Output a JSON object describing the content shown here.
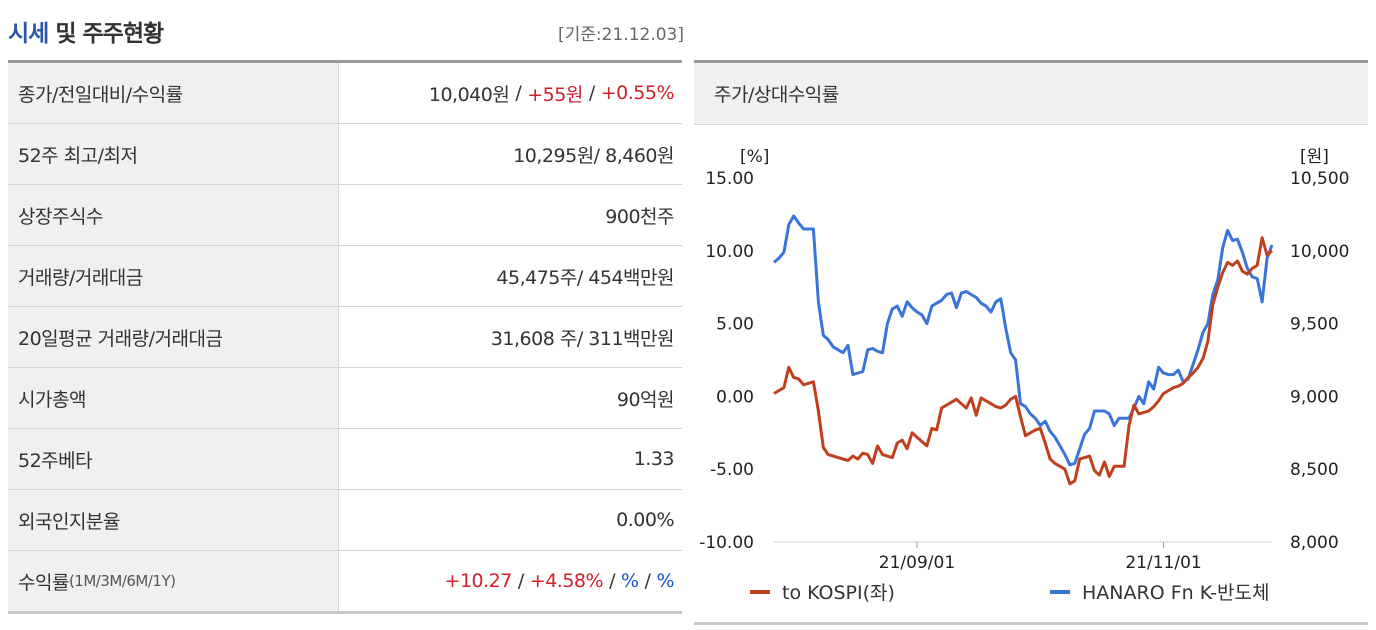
{
  "header": {
    "title_highlight": "시세",
    "title_rest": " 및 주주현황",
    "date": "[기준:21.12.03]"
  },
  "table": {
    "close": {
      "label": "종가/전일대비/수익률",
      "price": "10,040원",
      "change": "+55원",
      "rate": "+0.55%"
    },
    "range52": {
      "label": "52주 최고/최저",
      "value": "10,295원/ 8,460원"
    },
    "shares": {
      "label": "상장주식수",
      "value": "900천주"
    },
    "volume": {
      "label": "거래량/거래대금",
      "value": "45,475주/ 454백만원"
    },
    "avg20": {
      "label": "20일평균 거래량/거래대금",
      "value": "31,608 주/ 311백만원"
    },
    "mcap": {
      "label": "시가총액",
      "value": "90억원"
    },
    "beta": {
      "label": "52주베타",
      "value": "1.33"
    },
    "foreign": {
      "label": "외국인지분율",
      "value": "0.00%"
    },
    "returns": {
      "label_main": "수익률",
      "label_sub": "(1M/3M/6M/1Y)",
      "r1m": "+10.27",
      "r3m": "+4.58%",
      "r6m": "%",
      "r1y": "%",
      "sep": "/"
    }
  },
  "chart_header": "주가/상대수익률",
  "chart_data": {
    "type": "line",
    "left_unit": "[%]",
    "right_unit": "[원]",
    "left_ticks": [
      "15.00",
      "10.00",
      "5.00",
      "0.00",
      "-5.00",
      "-10.00"
    ],
    "right_ticks": [
      "10,500",
      "10,000",
      "9,500",
      "9,000",
      "8,500",
      "8,000"
    ],
    "left_ylim": [
      -10,
      15
    ],
    "right_ylim": [
      8000,
      10500
    ],
    "x_ticks": [
      "21/09/01",
      "21/11/01"
    ],
    "x_tick_index": [
      29,
      79
    ],
    "colors": {
      "kospi": "#c0401e",
      "etf": "#3a74d8"
    },
    "series": [
      {
        "name": "to KOSPI(좌)",
        "axis": "left",
        "values": [
          0.2,
          0.4,
          0.6,
          2.0,
          1.3,
          1.2,
          0.8,
          0.9,
          1.0,
          -1.0,
          -3.5,
          -4.0,
          -4.1,
          -4.2,
          -4.3,
          -4.4,
          -4.1,
          -4.3,
          -3.9,
          -4.0,
          -4.6,
          -3.4,
          -4.0,
          -4.1,
          -4.2,
          -3.2,
          -3.0,
          -3.6,
          -2.5,
          -2.8,
          -3.1,
          -3.4,
          -2.2,
          -2.3,
          -0.8,
          -0.6,
          -0.4,
          -0.2,
          -0.5,
          -0.8,
          -0.1,
          -1.3,
          -0.1,
          -0.3,
          -0.5,
          -0.7,
          -0.8,
          -0.6,
          -0.2,
          0.0,
          -1.4,
          -2.7,
          -2.5,
          -2.3,
          -2.2,
          -3.2,
          -4.3,
          -4.6,
          -4.8,
          -5.0,
          -6.0,
          -5.8,
          -4.3,
          -4.2,
          -4.1,
          -5.1,
          -5.4,
          -4.5,
          -5.5,
          -4.8,
          -4.8,
          -4.8,
          -2.0,
          -0.6,
          -1.2,
          -1.1,
          -1.0,
          -0.7,
          -0.3,
          0.2,
          0.4,
          0.6,
          0.7,
          0.9,
          1.3,
          1.6,
          2.0,
          2.6,
          3.8,
          6.3,
          7.5,
          8.5,
          9.2,
          9.0,
          9.3,
          8.6,
          8.4,
          8.8,
          9.0,
          10.9,
          9.7,
          10.0
        ]
      },
      {
        "name": "HANARO Fn K-반도체",
        "axis": "right",
        "values": [
          9920,
          9950,
          9990,
          10180,
          10240,
          10190,
          10150,
          10150,
          10150,
          9650,
          9420,
          9390,
          9340,
          9320,
          9300,
          9350,
          9150,
          9160,
          9170,
          9320,
          9330,
          9310,
          9300,
          9500,
          9600,
          9620,
          9550,
          9650,
          9610,
          9580,
          9560,
          9500,
          9620,
          9640,
          9660,
          9700,
          9710,
          9610,
          9710,
          9720,
          9700,
          9680,
          9640,
          9620,
          9580,
          9650,
          9670,
          9470,
          9300,
          9250,
          8950,
          8930,
          8880,
          8850,
          8800,
          8830,
          8760,
          8720,
          8660,
          8600,
          8530,
          8540,
          8640,
          8740,
          8780,
          8900,
          8900,
          8900,
          8880,
          8800,
          8850,
          8850,
          8850,
          8920,
          9000,
          8950,
          9100,
          9050,
          9200,
          9160,
          9150,
          9150,
          9180,
          9100,
          9120,
          9220,
          9320,
          9440,
          9500,
          9700,
          9800,
          10020,
          10140,
          10070,
          10080,
          9990,
          9880,
          9820,
          9810,
          9650,
          9950,
          10040
        ]
      }
    ]
  }
}
